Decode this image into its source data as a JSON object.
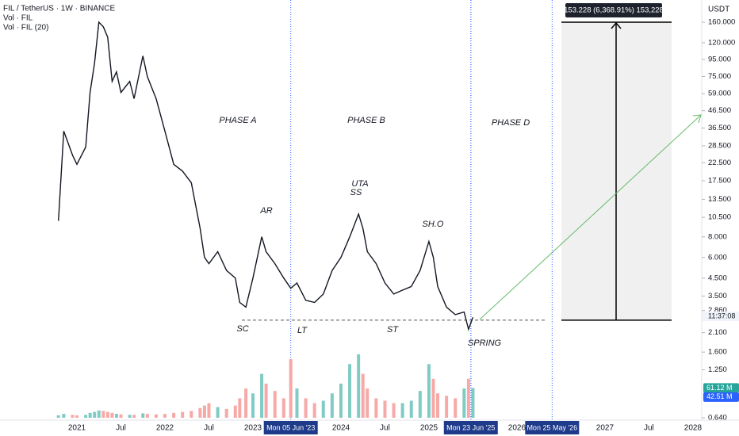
{
  "chart_data": {
    "type": "line",
    "title": "FIL / TetherUS · 1W · BINANCE",
    "indicators": [
      "Vol · FIL",
      "Vol · FIL (20)"
    ],
    "currency": "USDT",
    "log_scale": true,
    "color": "#131722",
    "xlim": [
      2020.126,
      2028.1
    ],
    "ylim": [
      0.64,
      160
    ],
    "x": [
      2020.79,
      2020.85,
      2020.95,
      2021.0,
      2021.1,
      2021.15,
      2021.2,
      2021.25,
      2021.3,
      2021.35,
      2021.4,
      2021.45,
      2021.5,
      2021.6,
      2021.65,
      2021.75,
      2021.8,
      2021.9,
      2022.0,
      2022.1,
      2022.2,
      2022.3,
      2022.4,
      2022.45,
      2022.5,
      2022.6,
      2022.7,
      2022.8,
      2022.85,
      2022.92,
      2023.0,
      2023.1,
      2023.15,
      2023.25,
      2023.35,
      2023.43,
      2023.5,
      2023.6,
      2023.7,
      2023.8,
      2023.9,
      2024.0,
      2024.1,
      2024.2,
      2024.25,
      2024.3,
      2024.4,
      2024.5,
      2024.6,
      2024.7,
      2024.8,
      2024.9,
      2025.0,
      2025.05,
      2025.1,
      2025.2,
      2025.3,
      2025.4,
      2025.45,
      2025.5
    ],
    "values": [
      10,
      35,
      25,
      22,
      28,
      60,
      90,
      160,
      150,
      130,
      70,
      80,
      60,
      70,
      55,
      100,
      75,
      55,
      35,
      22,
      20,
      17,
      9,
      6,
      5.5,
      6.5,
      5,
      4.5,
      3.2,
      3.0,
      4.5,
      8,
      6.5,
      5.5,
      4.5,
      3.9,
      4.2,
      3.3,
      3.2,
      3.6,
      5,
      6,
      8,
      11,
      9,
      6.5,
      5.5,
      4.2,
      3.6,
      3.8,
      4,
      5,
      7.5,
      6,
      4,
      3.0,
      2.7,
      2.8,
      2.2,
      2.6
    ],
    "volume": [
      5,
      8,
      6,
      5,
      6,
      10,
      12,
      15,
      14,
      12,
      10,
      8,
      7,
      6,
      6,
      9,
      8,
      7,
      8,
      10,
      12,
      14,
      20,
      25,
      30,
      22,
      18,
      25,
      40,
      60,
      50,
      90,
      70,
      55,
      40,
      120,
      60,
      40,
      30,
      35,
      50,
      70,
      110,
      130,
      90,
      60,
      40,
      35,
      30,
      30,
      35,
      55,
      110,
      80,
      50,
      45,
      40,
      60,
      80,
      61.12
    ],
    "volume_ylim": [
      0,
      130
    ],
    "volume_badges": [
      {
        "value": 61.12,
        "label": "61.12 M"
      },
      {
        "value": 42.51,
        "label": "42.51 M"
      }
    ],
    "yticks": [
      {
        "value": 160,
        "label": "160.000"
      },
      {
        "value": 120,
        "label": "120.000"
      },
      {
        "value": 95,
        "label": "95.000"
      },
      {
        "value": 75,
        "label": "75.000"
      },
      {
        "value": 59,
        "label": "59.000"
      },
      {
        "value": 46.5,
        "label": "46.500"
      },
      {
        "value": 36.5,
        "label": "36.500"
      },
      {
        "value": 28.5,
        "label": "28.500"
      },
      {
        "value": 22.5,
        "label": "22.500"
      },
      {
        "value": 17.5,
        "label": "17.500"
      },
      {
        "value": 13.5,
        "label": "13.500"
      },
      {
        "value": 10.5,
        "label": "10.500"
      },
      {
        "value": 8,
        "label": "8.000"
      },
      {
        "value": 6,
        "label": "6.000"
      },
      {
        "value": 4.5,
        "label": "4.500"
      },
      {
        "value": 3.5,
        "label": "3.500"
      },
      {
        "value": 2.86,
        "label": "2.860"
      },
      {
        "value": 2.1,
        "label": "2.100"
      },
      {
        "value": 1.6,
        "label": "1.600"
      },
      {
        "value": 1.25,
        "label": "1.250"
      },
      {
        "value": 0.64,
        "label": "0.640"
      }
    ],
    "xticks": [
      {
        "value": 2021,
        "label": "2021"
      },
      {
        "value": 2021.5,
        "label": "Jul"
      },
      {
        "value": 2022,
        "label": "2022"
      },
      {
        "value": 2022.5,
        "label": "Jul"
      },
      {
        "value": 2023,
        "label": "2023"
      },
      {
        "value": 2024,
        "label": "2024"
      },
      {
        "value": 2024.5,
        "label": "Jul"
      },
      {
        "value": 2025,
        "label": "2025"
      },
      {
        "value": 2026,
        "label": "2026"
      },
      {
        "value": 2027,
        "label": "2027"
      },
      {
        "value": 2027.5,
        "label": "Jul"
      },
      {
        "value": 2028,
        "label": "2028"
      }
    ],
    "date_markers": [
      {
        "value": 2023.43,
        "label": "Mon 05 Jun '23"
      },
      {
        "value": 2025.476,
        "label": "Mon 23 Jun '25"
      },
      {
        "value": 2026.4,
        "label": "Mon 25 May '26"
      }
    ],
    "support_level": 2.5,
    "countdown": "11:37:08",
    "measure_label": "153.228 (6,368.91%) 153,228",
    "annotations": [
      "PHASE A",
      "PHASE B",
      "PHASE D",
      "AR",
      "UTA",
      "SS",
      "SH.O",
      "SC",
      "LT",
      "ST",
      "SPRING"
    ]
  }
}
